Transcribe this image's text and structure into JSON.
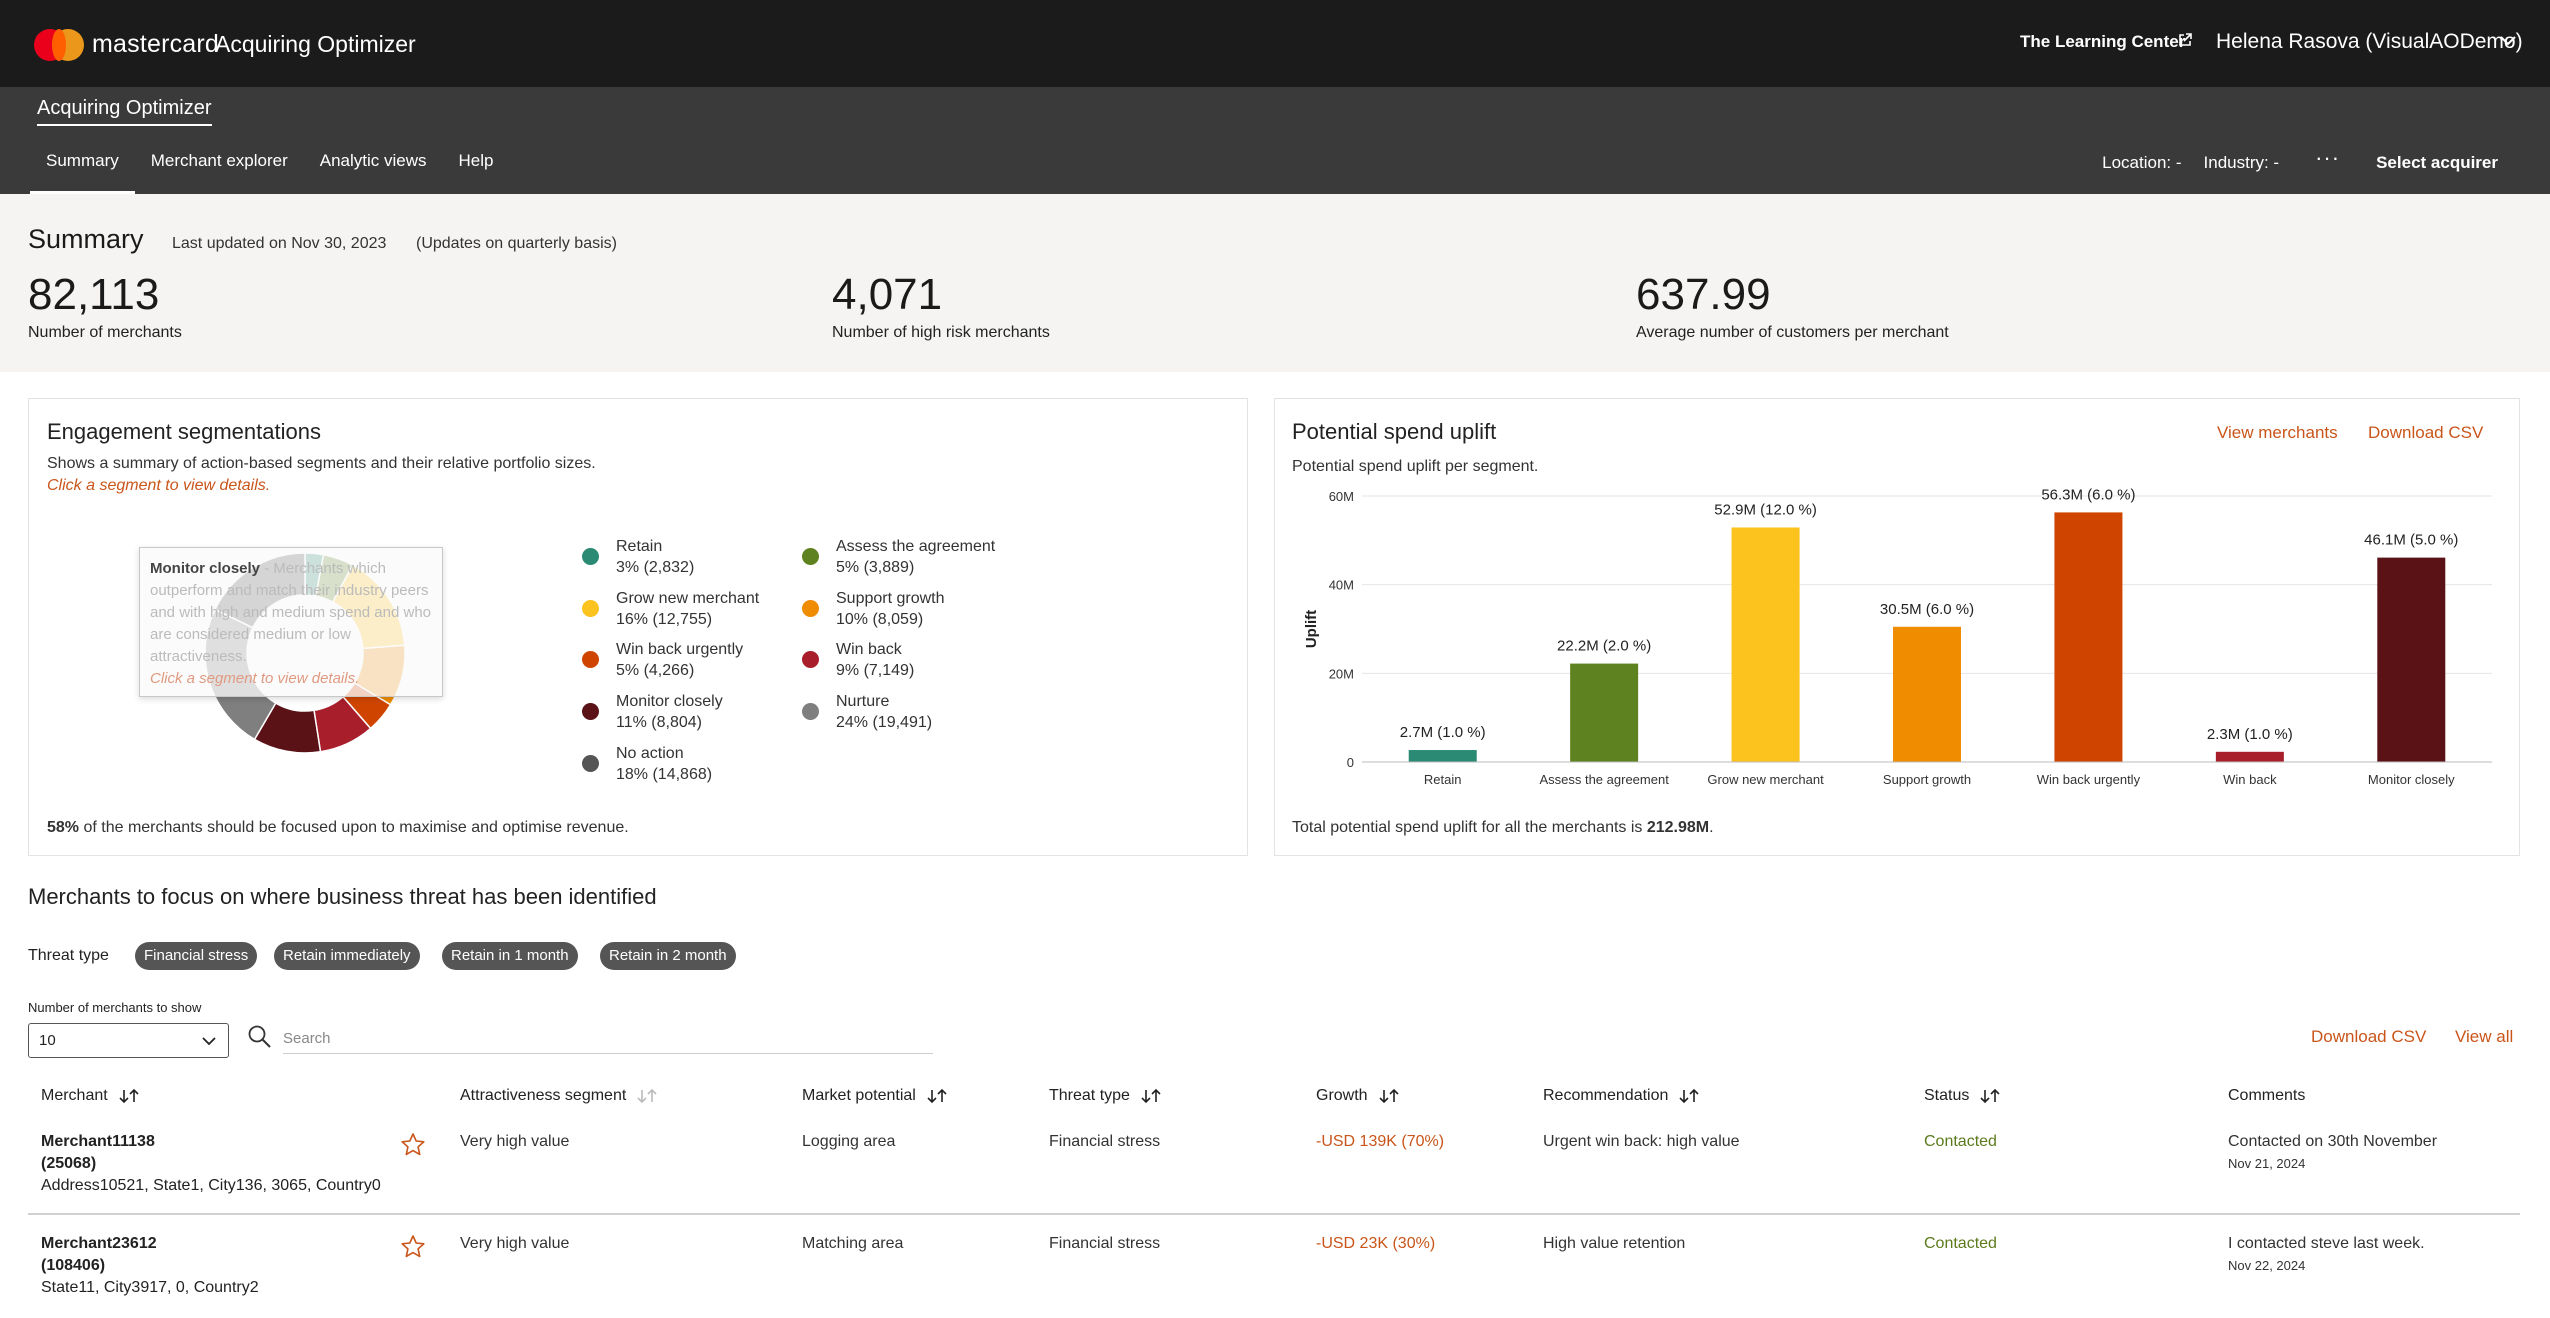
{
  "header": {
    "brand": "mastercard",
    "product": "Acquiring Optimizer",
    "learning_center": "The Learning Center",
    "user": "Helena Rasova (VisualAODemo)"
  },
  "subheader": {
    "app_name": "Acquiring Optimizer",
    "nav": [
      {
        "label": "Summary",
        "active": true
      },
      {
        "label": "Merchant explorer",
        "active": false
      },
      {
        "label": "Analytic views",
        "active": false
      },
      {
        "label": "Help",
        "active": false
      }
    ],
    "location": "Location: -",
    "industry": "Industry: -",
    "more": "···",
    "select_acquirer": "Select acquirer"
  },
  "summary": {
    "title": "Summary",
    "last_updated": "Last updated on Nov 30, 2023",
    "note": "(Updates on quarterly basis)",
    "kpis": [
      {
        "value": "82,113",
        "label": "Number of merchants"
      },
      {
        "value": "4,071",
        "label": "Number of high risk merchants"
      },
      {
        "value": "637.99",
        "label": "Average number of customers per merchant"
      }
    ]
  },
  "engagement": {
    "title": "Engagement segmentations",
    "subtitle": "Shows a summary of action-based segments and their relative portfolio sizes.",
    "hint": "Click a segment to view details.",
    "tooltip": {
      "name": "Monitor closely",
      "text": " - Merchants which outperform and match their industry peers and with high and medium spend and who are considered medium or low attractiveness.",
      "hint": "Click a segment to view details."
    },
    "segments": [
      {
        "name": "Retain",
        "stats": "3% (2,832)",
        "color": "#2a8a74",
        "pct": 3
      },
      {
        "name": "Assess the agreement",
        "stats": "5% (3,889)",
        "color": "#5f8220",
        "pct": 5
      },
      {
        "name": "Grow new merchant",
        "stats": "16% (12,755)",
        "color": "#fcc21e",
        "pct": 16
      },
      {
        "name": "Support growth",
        "stats": "10% (8,059)",
        "color": "#f08c00",
        "pct": 10
      },
      {
        "name": "Win back urgently",
        "stats": "5% (4,266)",
        "color": "#cf4500",
        "pct": 5
      },
      {
        "name": "Win back",
        "stats": "9% (7,149)",
        "color": "#a81e2b",
        "pct": 9
      },
      {
        "name": "Monitor closely",
        "stats": "11% (8,804)",
        "color": "#5a1217",
        "pct": 11
      },
      {
        "name": "Nurture",
        "stats": "24% (19,491)",
        "color": "#7f7f7f",
        "pct": 24
      },
      {
        "name": "No action",
        "stats": "18% (14,868)",
        "color": "#555555",
        "pct": 18
      }
    ],
    "focus_pct": "58%",
    "focus_text": " of the merchants should be focused upon to maximise and optimise revenue."
  },
  "uplift": {
    "title": "Potential spend uplift",
    "subtitle": "Potential spend uplift per segment.",
    "view_merchants": "View merchants",
    "download_csv": "Download CSV",
    "total_text": "Total potential spend uplift for all the merchants is ",
    "total_value": "212.98M",
    "total_end": "."
  },
  "chart_data": {
    "type": "bar",
    "title": "Potential spend uplift",
    "ylabel": "Uplift",
    "ylim": [
      0,
      60
    ],
    "yticks": [
      "0",
      "20M",
      "40M",
      "60M"
    ],
    "categories": [
      "Retain",
      "Assess the agreement",
      "Grow new merchant",
      "Support growth",
      "Win back urgently",
      "Win back",
      "Monitor closely"
    ],
    "values": [
      2.7,
      22.2,
      52.9,
      30.5,
      56.3,
      2.3,
      46.1
    ],
    "labels": [
      "2.7M (1.0 %)",
      "22.2M (2.0 %)",
      "52.9M (12.0 %)",
      "30.5M (6.0 %)",
      "56.3M (6.0 %)",
      "2.3M (1.0 %)",
      "46.1M (5.0 %)"
    ],
    "colors": [
      "#2a8a74",
      "#5f8220",
      "#fcc21e",
      "#f08c00",
      "#cf4500",
      "#a81e2b",
      "#5a1217"
    ],
    "grid": true
  },
  "threats": {
    "title": "Merchants to focus on where business threat has been identified",
    "threat_type_label": "Threat type",
    "chips": [
      "Financial stress",
      "Retain immediately",
      "Retain in 1 month",
      "Retain in 2 month"
    ],
    "num_label": "Number of merchants to show",
    "num_value": "10",
    "search_placeholder": "Search",
    "download_csv": "Download CSV",
    "view_all": "View all",
    "columns": [
      "Merchant",
      "Attractiveness segment",
      "Market potential",
      "Threat type",
      "Growth",
      "Recommendation",
      "Status",
      "Comments"
    ],
    "rows": [
      {
        "name": "Merchant11138",
        "id": "(25068)",
        "address": "Address10521, State1, City136, 3065, Country0",
        "attractiveness": "Very high value",
        "market": "Logging area",
        "threat": "Financial stress",
        "growth": "-USD 139K (70%)",
        "recommendation": "Urgent win back: high value",
        "status": "Contacted",
        "comment": "Contacted on 30th November",
        "comment_date": "Nov 21, 2024"
      },
      {
        "name": "Merchant23612",
        "id": "(108406)",
        "address": "State11, City3917, 0, Country2",
        "attractiveness": "Very high value",
        "market": "Matching area",
        "threat": "Financial stress",
        "growth": "-USD 23K (30%)",
        "recommendation": "High value retention",
        "status": "Contacted",
        "comment": "I contacted steve last week.",
        "comment_date": "Nov 22, 2024"
      }
    ]
  }
}
